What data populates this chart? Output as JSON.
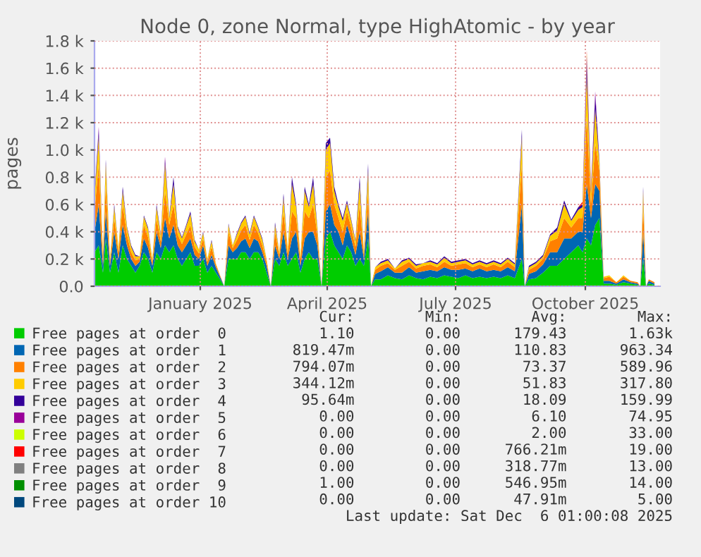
{
  "chart_data": {
    "type": "area",
    "stacked": true,
    "title": "Node 0, zone Normal, type HighAtomic - by year",
    "ylabel": "pages",
    "x": [
      "2024-10-18",
      "2024-10-21",
      "2024-10-24",
      "2024-10-26",
      "2024-10-29",
      "2024-11-01",
      "2024-11-04",
      "2024-11-07",
      "2024-11-10",
      "2024-11-13",
      "2024-11-16",
      "2024-11-19",
      "2024-11-22",
      "2024-11-25",
      "2024-11-28",
      "2024-12-01",
      "2024-12-04",
      "2024-12-07",
      "2024-12-10",
      "2024-12-13",
      "2024-12-16",
      "2024-12-19",
      "2024-12-22",
      "2024-12-25",
      "2024-12-28",
      "2024-12-31",
      "2025-01-03",
      "2025-01-06",
      "2025-01-09",
      "2025-01-12",
      "2025-01-15",
      "2025-01-18",
      "2025-01-21",
      "2025-01-24",
      "2025-01-27",
      "2025-01-30",
      "2025-02-02",
      "2025-02-05",
      "2025-02-08",
      "2025-02-11",
      "2025-02-14",
      "2025-02-17",
      "2025-02-20",
      "2025-02-23",
      "2025-02-26",
      "2025-03-01",
      "2025-03-04",
      "2025-03-07",
      "2025-03-10",
      "2025-03-13",
      "2025-03-16",
      "2025-03-19",
      "2025-03-22",
      "2025-03-25",
      "2025-03-28",
      "2025-03-31",
      "2025-04-03",
      "2025-04-06",
      "2025-04-09",
      "2025-04-12",
      "2025-04-15",
      "2025-04-18",
      "2025-04-21",
      "2025-04-24",
      "2025-04-27",
      "2025-04-30",
      "2025-05-02",
      "2025-05-05",
      "2025-05-09",
      "2025-05-14",
      "2025-05-19",
      "2025-05-24",
      "2025-05-29",
      "2025-06-03",
      "2025-06-08",
      "2025-06-13",
      "2025-06-18",
      "2025-06-23",
      "2025-06-28",
      "2025-07-03",
      "2025-07-08",
      "2025-07-13",
      "2025-07-18",
      "2025-07-23",
      "2025-07-28",
      "2025-08-02",
      "2025-08-07",
      "2025-08-12",
      "2025-08-17",
      "2025-08-19",
      "2025-08-22",
      "2025-08-27",
      "2025-09-01",
      "2025-09-06",
      "2025-09-11",
      "2025-09-16",
      "2025-09-21",
      "2025-09-26",
      "2025-09-29",
      "2025-10-02",
      "2025-10-05",
      "2025-10-08",
      "2025-10-11",
      "2025-10-14",
      "2025-10-18",
      "2025-10-23",
      "2025-10-28",
      "2025-11-02",
      "2025-11-07",
      "2025-11-09",
      "2025-11-11",
      "2025-11-13",
      "2025-11-15",
      "2025-11-19"
    ],
    "series": [
      {
        "name": "Free pages at order  0",
        "color": "#00cc00",
        "values": [
          250,
          300,
          100,
          350,
          100,
          250,
          100,
          300,
          200,
          150,
          100,
          150,
          250,
          200,
          100,
          250,
          200,
          300,
          250,
          300,
          200,
          150,
          200,
          250,
          150,
          150,
          200,
          100,
          150,
          100,
          50,
          0,
          200,
          200,
          200,
          250,
          250,
          200,
          250,
          250,
          200,
          100,
          0,
          200,
          150,
          250,
          150,
          200,
          250,
          100,
          200,
          250,
          200,
          200,
          0,
          350,
          400,
          300,
          250,
          200,
          300,
          250,
          150,
          200,
          150,
          350,
          0,
          50,
          50,
          80,
          60,
          50,
          80,
          60,
          50,
          70,
          60,
          80,
          70,
          60,
          80,
          60,
          70,
          60,
          70,
          60,
          80,
          60,
          200,
          0,
          50,
          60,
          100,
          150,
          150,
          200,
          250,
          300,
          250,
          350,
          300,
          450,
          500,
          20,
          20,
          10,
          30,
          20,
          10,
          0,
          200,
          0,
          20,
          10
        ]
      },
      {
        "name": "Free pages at order  1",
        "color": "#0066b3",
        "values": [
          150,
          300,
          50,
          200,
          50,
          150,
          100,
          150,
          100,
          50,
          50,
          30,
          100,
          80,
          50,
          150,
          80,
          200,
          100,
          150,
          100,
          100,
          100,
          100,
          80,
          50,
          100,
          50,
          80,
          40,
          20,
          0,
          100,
          50,
          80,
          80,
          100,
          80,
          100,
          80,
          50,
          50,
          0,
          100,
          50,
          150,
          50,
          150,
          150,
          50,
          150,
          150,
          200,
          100,
          0,
          200,
          200,
          150,
          150,
          100,
          150,
          100,
          80,
          200,
          50,
          200,
          0,
          40,
          60,
          60,
          40,
          50,
          60,
          40,
          60,
          50,
          50,
          60,
          50,
          60,
          50,
          50,
          60,
          50,
          50,
          50,
          60,
          50,
          400,
          0,
          40,
          50,
          60,
          100,
          100,
          150,
          100,
          100,
          150,
          400,
          200,
          300,
          200,
          20,
          20,
          10,
          20,
          10,
          10,
          0,
          200,
          0,
          20,
          10
        ]
      },
      {
        "name": "Free pages at order  2",
        "color": "#ff8000",
        "values": [
          150,
          300,
          50,
          200,
          30,
          100,
          50,
          150,
          80,
          50,
          40,
          20,
          100,
          80,
          30,
          100,
          50,
          200,
          100,
          150,
          80,
          60,
          80,
          100,
          60,
          40,
          50,
          30,
          60,
          20,
          10,
          0,
          100,
          30,
          60,
          80,
          100,
          60,
          100,
          60,
          50,
          30,
          0,
          100,
          30,
          150,
          40,
          200,
          100,
          50,
          200,
          100,
          200,
          80,
          0,
          250,
          250,
          150,
          100,
          100,
          100,
          80,
          60,
          200,
          30,
          150,
          0,
          30,
          40,
          30,
          20,
          50,
          40,
          30,
          40,
          40,
          30,
          40,
          30,
          40,
          40,
          30,
          30,
          30,
          40,
          30,
          40,
          30,
          300,
          0,
          30,
          40,
          40,
          80,
          100,
          150,
          80,
          100,
          100,
          500,
          100,
          300,
          150,
          20,
          30,
          10,
          20,
          10,
          10,
          0,
          200,
          0,
          10,
          10
        ]
      },
      {
        "name": "Free pages at order  3",
        "color": "#ffcc00",
        "values": [
          100,
          200,
          30,
          150,
          20,
          80,
          30,
          100,
          50,
          40,
          30,
          20,
          60,
          60,
          20,
          80,
          40,
          200,
          50,
          150,
          50,
          40,
          60,
          80,
          40,
          30,
          40,
          20,
          40,
          10,
          0,
          0,
          50,
          20,
          40,
          50,
          60,
          40,
          60,
          40,
          40,
          20,
          0,
          50,
          20,
          100,
          30,
          200,
          80,
          20,
          150,
          80,
          150,
          50,
          0,
          200,
          200,
          100,
          80,
          80,
          60,
          50,
          40,
          150,
          20,
          150,
          0,
          20,
          20,
          20,
          10,
          30,
          20,
          20,
          20,
          20,
          20,
          30,
          20,
          20,
          20,
          20,
          20,
          20,
          20,
          20,
          20,
          20,
          200,
          0,
          20,
          20,
          20,
          40,
          60,
          100,
          50,
          60,
          80,
          300,
          80,
          250,
          50,
          10,
          10,
          0,
          10,
          0,
          0,
          0,
          100,
          0,
          0,
          0
        ]
      },
      {
        "name": "Free pages at order  4",
        "color": "#330099",
        "values": [
          20,
          50,
          0,
          30,
          0,
          20,
          0,
          30,
          10,
          10,
          10,
          0,
          10,
          10,
          0,
          20,
          10,
          30,
          10,
          50,
          10,
          10,
          10,
          20,
          10,
          0,
          10,
          0,
          10,
          0,
          0,
          0,
          10,
          0,
          10,
          10,
          10,
          10,
          10,
          10,
          10,
          0,
          0,
          20,
          0,
          30,
          0,
          50,
          20,
          0,
          30,
          20,
          50,
          10,
          0,
          50,
          40,
          30,
          20,
          20,
          20,
          10,
          10,
          50,
          0,
          50,
          0,
          0,
          10,
          10,
          0,
          10,
          10,
          10,
          0,
          10,
          10,
          10,
          10,
          10,
          10,
          10,
          10,
          10,
          10,
          10,
          10,
          10,
          50,
          0,
          10,
          10,
          10,
          10,
          20,
          30,
          10,
          20,
          20,
          100,
          20,
          100,
          20,
          0,
          0,
          0,
          0,
          0,
          0,
          0,
          30,
          0,
          0,
          0
        ]
      },
      {
        "name": "Free pages at order  5",
        "color": "#990099",
        "values": [
          0,
          20,
          0,
          0,
          0,
          0,
          0,
          0,
          0,
          0,
          0,
          0,
          0,
          0,
          0,
          0,
          0,
          20,
          0,
          0,
          0,
          0,
          0,
          0,
          0,
          0,
          0,
          0,
          0,
          0,
          0,
          0,
          0,
          0,
          0,
          0,
          0,
          0,
          0,
          0,
          0,
          0,
          0,
          0,
          0,
          0,
          0,
          0,
          0,
          0,
          0,
          0,
          0,
          0,
          0,
          0,
          0,
          0,
          0,
          0,
          0,
          0,
          0,
          0,
          0,
          0,
          0,
          0,
          0,
          0,
          0,
          0,
          0,
          0,
          0,
          0,
          0,
          0,
          0,
          0,
          0,
          0,
          0,
          0,
          0,
          0,
          0,
          0,
          0,
          0,
          0,
          0,
          0,
          0,
          0,
          0,
          0,
          0,
          0,
          40,
          0,
          30,
          0,
          0,
          0,
          0,
          0,
          0,
          0,
          0,
          0,
          0,
          0,
          0
        ]
      },
      {
        "name": "Free pages at order  6",
        "color": "#ccff00",
        "values": [
          0,
          0,
          0,
          0,
          0,
          0,
          0,
          0,
          0,
          0,
          0,
          0,
          0,
          0,
          0,
          0,
          0,
          0,
          0,
          0,
          0,
          0,
          0,
          0,
          0,
          0,
          0,
          0,
          0,
          0,
          0,
          0,
          0,
          0,
          0,
          0,
          0,
          0,
          0,
          0,
          0,
          0,
          0,
          0,
          0,
          0,
          0,
          0,
          0,
          0,
          0,
          0,
          0,
          0,
          0,
          0,
          0,
          0,
          0,
          0,
          0,
          0,
          0,
          0,
          0,
          0,
          0,
          0,
          0,
          0,
          0,
          0,
          0,
          0,
          0,
          0,
          0,
          0,
          0,
          0,
          0,
          0,
          0,
          0,
          0,
          0,
          0,
          0,
          0,
          0,
          0,
          0,
          0,
          0,
          0,
          0,
          0,
          0,
          0,
          20,
          0,
          0,
          0,
          0,
          0,
          0,
          0,
          0,
          0,
          0,
          0,
          0,
          0,
          0
        ]
      },
      {
        "name": "Free pages at order  7",
        "color": "#ff0000",
        "values": [
          0,
          0,
          0,
          0,
          0,
          0,
          0,
          0,
          0,
          0,
          0,
          0,
          0,
          0,
          0,
          0,
          0,
          0,
          0,
          0,
          0,
          0,
          0,
          0,
          0,
          0,
          0,
          0,
          0,
          0,
          0,
          0,
          0,
          0,
          0,
          0,
          0,
          0,
          0,
          0,
          0,
          0,
          0,
          0,
          0,
          0,
          0,
          0,
          0,
          0,
          0,
          0,
          0,
          0,
          0,
          0,
          0,
          0,
          0,
          0,
          0,
          0,
          0,
          0,
          0,
          0,
          0,
          0,
          0,
          0,
          0,
          0,
          0,
          0,
          0,
          0,
          0,
          0,
          0,
          0,
          0,
          0,
          0,
          0,
          0,
          0,
          0,
          0,
          0,
          0,
          0,
          0,
          0,
          0,
          0,
          0,
          0,
          0,
          20,
          20,
          20,
          0,
          0,
          0,
          0,
          0,
          0,
          0,
          0,
          0,
          0,
          0,
          0,
          0
        ]
      },
      {
        "name": "Free pages at order  8",
        "color": "#808080",
        "values": [
          null,
          null,
          null,
          null,
          null,
          null,
          null,
          null,
          null,
          null,
          null,
          null,
          null,
          null,
          null,
          null,
          null,
          null,
          null,
          null,
          null,
          null,
          null,
          null,
          null,
          null,
          null,
          null,
          null,
          null,
          null,
          null,
          null,
          null,
          null,
          null,
          null,
          null,
          null,
          null,
          null,
          null,
          null,
          null,
          null,
          null,
          null,
          null,
          null,
          null,
          null,
          null,
          null,
          null,
          null,
          null,
          null,
          null,
          null,
          null,
          null,
          null,
          null,
          null,
          null,
          null,
          null,
          null,
          null,
          null,
          null,
          null,
          null,
          null,
          null,
          null,
          null,
          null,
          null,
          null,
          null,
          null,
          null,
          null,
          null,
          null,
          null,
          null,
          null,
          null,
          null,
          null,
          null,
          null,
          null,
          null,
          null,
          null,
          null,
          null,
          null,
          null,
          null,
          null,
          null,
          null,
          null,
          null,
          null,
          null,
          null,
          null,
          null,
          null
        ]
      },
      {
        "name": "Free pages at order  9",
        "color": "#008f00",
        "values": [
          null,
          null,
          null,
          null,
          null,
          null,
          null,
          null,
          null,
          null,
          null,
          null,
          null,
          null,
          null,
          null,
          null,
          null,
          null,
          null,
          null,
          null,
          null,
          null,
          null,
          null,
          null,
          null,
          null,
          null,
          null,
          null,
          null,
          null,
          null,
          null,
          null,
          null,
          null,
          null,
          null,
          null,
          null,
          null,
          null,
          null,
          null,
          null,
          null,
          null,
          null,
          null,
          null,
          null,
          null,
          null,
          null,
          null,
          null,
          null,
          null,
          null,
          null,
          null,
          null,
          null,
          null,
          null,
          null,
          null,
          null,
          null,
          null,
          null,
          null,
          null,
          null,
          null,
          null,
          null,
          null,
          null,
          null,
          null,
          null,
          null,
          null,
          null,
          null,
          null,
          null,
          null,
          null,
          null,
          null,
          null,
          null,
          null,
          null,
          null,
          null,
          null,
          null,
          null,
          null,
          null,
          null,
          null,
          null,
          null,
          null,
          null,
          null,
          null
        ]
      },
      {
        "name": "Free pages at order 10",
        "color": "#00487d",
        "values": [
          null,
          null,
          null,
          null,
          null,
          null,
          null,
          null,
          null,
          null,
          null,
          null,
          null,
          null,
          null,
          null,
          null,
          null,
          null,
          null,
          null,
          null,
          null,
          null,
          null,
          null,
          null,
          null,
          null,
          null,
          null,
          null,
          null,
          null,
          null,
          null,
          null,
          null,
          null,
          null,
          null,
          null,
          null,
          null,
          null,
          null,
          null,
          null,
          null,
          null,
          null,
          null,
          null,
          null,
          null,
          null,
          null,
          null,
          null,
          null,
          null,
          null,
          null,
          null,
          null,
          null,
          null,
          null,
          null,
          null,
          null,
          null,
          null,
          null,
          null,
          null,
          null,
          null,
          null,
          null,
          null,
          null,
          null,
          null,
          null,
          null,
          null,
          null,
          null,
          null,
          null,
          null,
          null,
          null,
          null,
          null,
          null,
          null,
          null,
          null,
          null,
          null,
          null,
          null,
          null,
          null,
          null,
          null,
          null,
          null,
          null,
          null,
          null,
          null
        ]
      }
    ],
    "xlim": [
      "2024-10-18",
      "2025-11-23"
    ],
    "xticks": [
      {
        "value": "2025-01-01",
        "label": "January 2025"
      },
      {
        "value": "2025-04-01",
        "label": "April 2025"
      },
      {
        "value": "2025-07-01",
        "label": "July 2025"
      },
      {
        "value": "2025-10-01",
        "label": "October 2025"
      }
    ],
    "ylim": [
      0,
      1800
    ],
    "yticks": [
      {
        "value": 0,
        "label": "0.0"
      },
      {
        "value": 200,
        "label": "0.2 k"
      },
      {
        "value": 400,
        "label": "0.4 k"
      },
      {
        "value": 600,
        "label": "0.6 k"
      },
      {
        "value": 800,
        "label": "0.8 k"
      },
      {
        "value": 1000,
        "label": "1.0 k"
      },
      {
        "value": 1200,
        "label": "1.2 k"
      },
      {
        "value": 1400,
        "label": "1.4 k"
      },
      {
        "value": 1600,
        "label": "1.6 k"
      },
      {
        "value": 1800,
        "label": "1.8 k"
      }
    ],
    "grid": true,
    "legend": "bottom",
    "annotations": [
      "        Cur:        Min:        Avg:        Max:",
      "        1.10        0.00      179.43       1.63k",
      "     819.47m        0.00      110.83      963.34",
      "     794.07m        0.00       73.37      589.96",
      "     344.12m        0.00       51.83      317.80",
      "      95.64m        0.00       18.09      159.99",
      "        0.00        0.00        6.10       74.95",
      "        0.00        0.00        2.00       33.00",
      "        0.00        0.00     766.21m       19.00",
      "        0.00        0.00     318.77m       13.00",
      "        1.00        0.00     546.95m       14.00",
      "        0.00        0.00      47.91m        5.00",
      "Last update: Sat Dec  6 01:00:08 2025"
    ]
  }
}
